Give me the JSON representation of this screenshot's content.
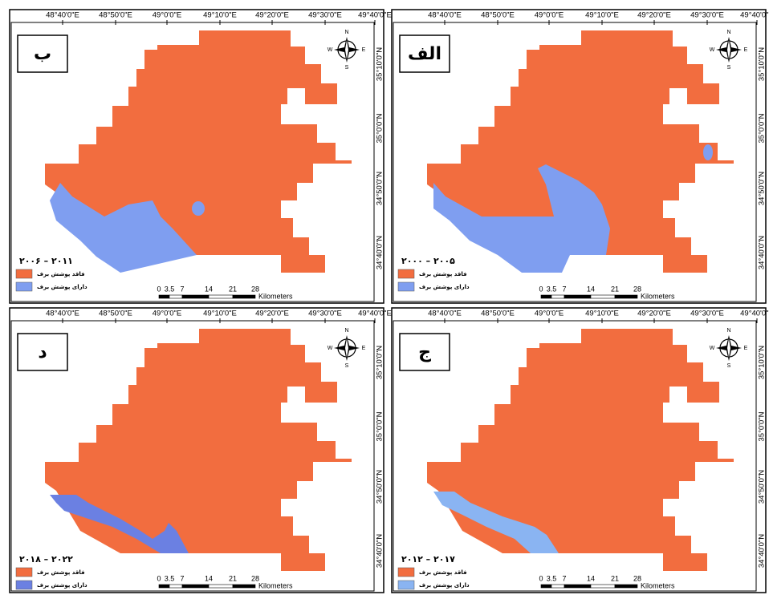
{
  "panels": [
    {
      "label": "ب",
      "period": "۲۰۰۶ – ۲۰۱۱"
    },
    {
      "label": "الف",
      "period": "۲۰۰۰ – ۲۰۰۵"
    },
    {
      "label": "د",
      "period": "۲۰۱۸ – ۲۰۲۲"
    },
    {
      "label": "ج",
      "period": "۲۰۱۲ – ۲۰۱۷"
    }
  ],
  "longitude_labels": [
    "48°40'0\"E",
    "48°50'0\"E",
    "49°0'0\"E",
    "49°10'0\"E",
    "49°20'0\"E",
    "49°30'0\"E",
    "49°40'0\"E"
  ],
  "latitude_labels": [
    "35°10'0\"N",
    "35°0'0\"N",
    "34°50'0\"N",
    "34°40'0\"N"
  ],
  "legend": [
    "فاقد پوشش برف",
    "دارای پوشش برف"
  ],
  "scale_labels": [
    0,
    3.5,
    7,
    14,
    21,
    28
  ],
  "scale_unit": "Kilometers",
  "compass": {
    "n": "N",
    "e": "E",
    "s": "S",
    "w": "W"
  }
}
